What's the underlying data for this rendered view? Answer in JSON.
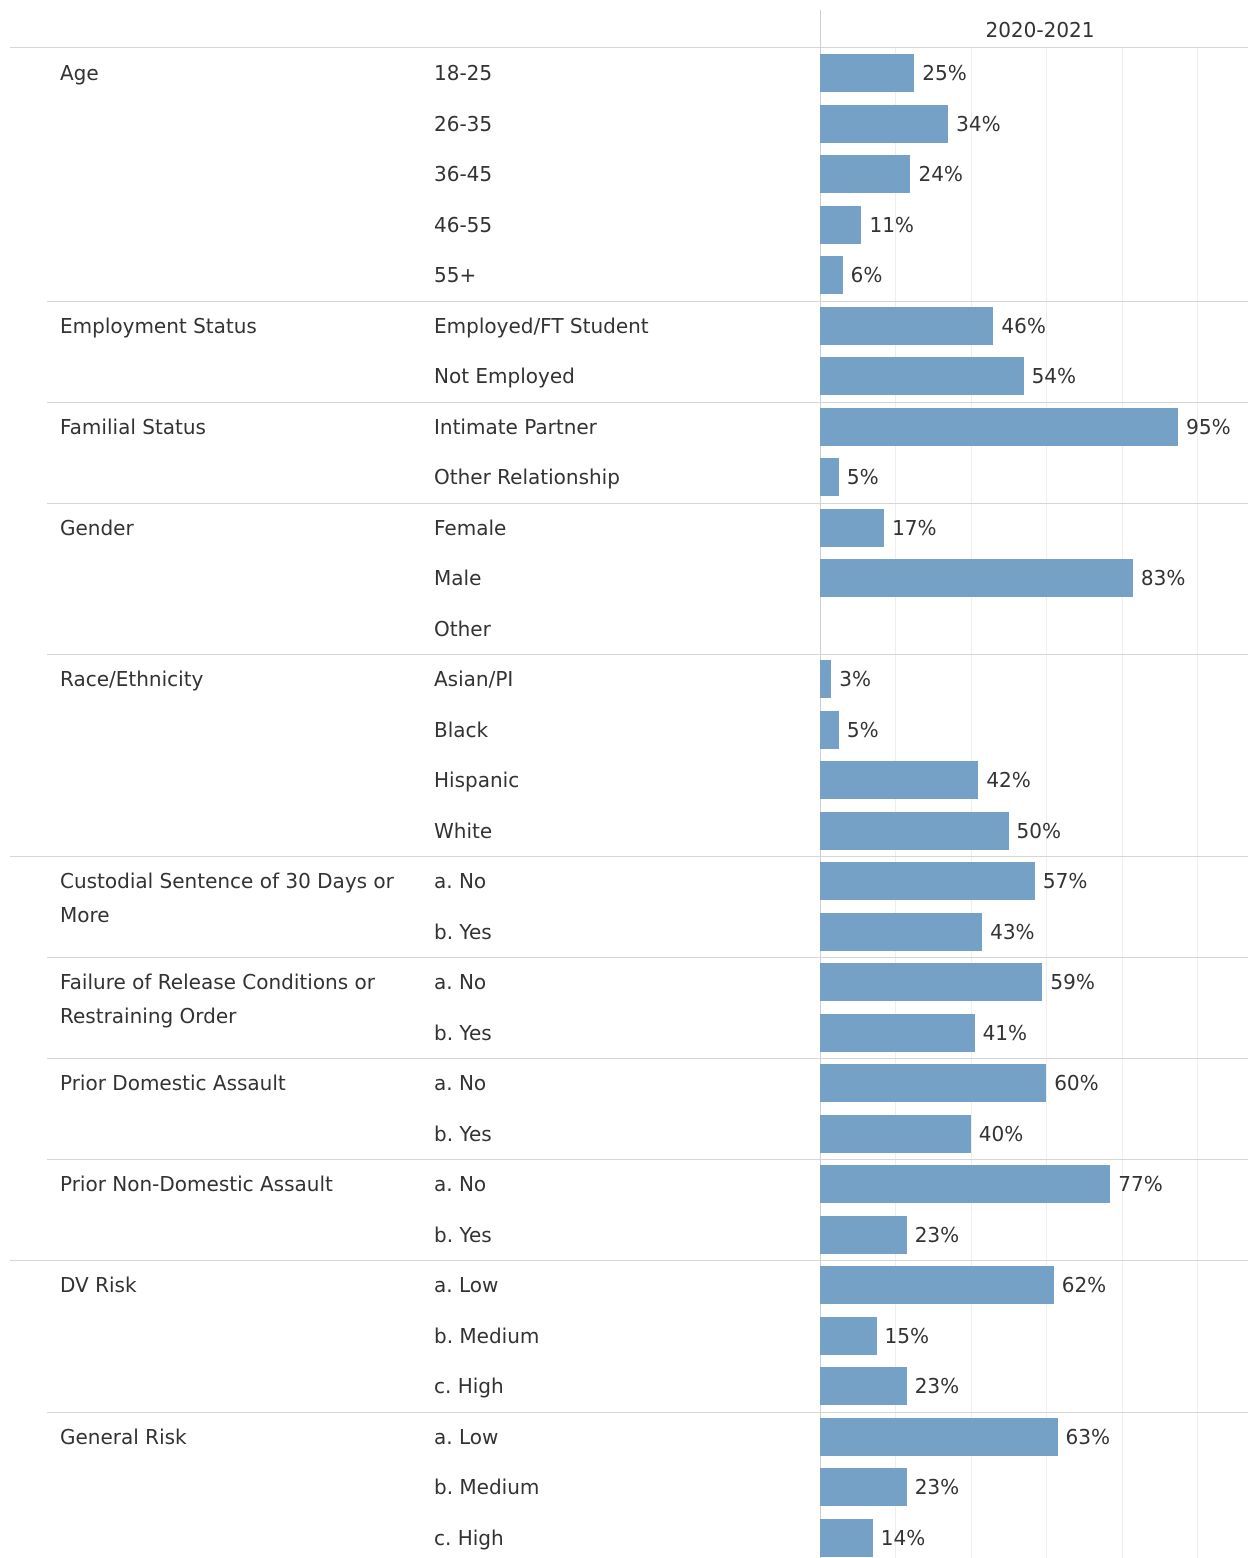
{
  "chart_data": {
    "type": "bar",
    "column_header": "2020-2021",
    "color": "#75a1c7",
    "xlim": [
      0,
      100
    ],
    "xticks": [
      0,
      20,
      40,
      60,
      80,
      100
    ],
    "grid": true,
    "groups": [
      {
        "name": "Age",
        "categories": [
          "18-25",
          "26-35",
          "36-45",
          "46-55",
          "55+"
        ],
        "values": [
          25,
          34,
          24,
          11,
          6
        ],
        "value_labels": [
          "25%",
          "34%",
          "24%",
          "11%",
          "6%"
        ]
      },
      {
        "name": "Employment Status",
        "categories": [
          "Employed/FT Student",
          "Not Employed"
        ],
        "values": [
          46,
          54
        ],
        "value_labels": [
          "46%",
          "54%"
        ]
      },
      {
        "name": "Familial Status",
        "categories": [
          "Intimate Partner",
          "Other Relationship"
        ],
        "values": [
          95,
          5
        ],
        "value_labels": [
          "95%",
          "5%"
        ]
      },
      {
        "name": "Gender",
        "categories": [
          "Female",
          "Male",
          "Other"
        ],
        "values": [
          17,
          83,
          null
        ],
        "value_labels": [
          "17%",
          "83%",
          null
        ]
      },
      {
        "name": "Race/Ethnicity",
        "categories": [
          "Asian/PI",
          "Black",
          "Hispanic",
          "White"
        ],
        "values": [
          3,
          5,
          42,
          50
        ],
        "value_labels": [
          "3%",
          "5%",
          "42%",
          "50%"
        ]
      },
      {
        "name": "Custodial Sentence of 30 Days or More",
        "categories": [
          "a. No",
          "b. Yes"
        ],
        "values": [
          57,
          43
        ],
        "value_labels": [
          "57%",
          "43%"
        ]
      },
      {
        "name": "Failure of Release Conditions or Restraining Order",
        "categories": [
          "a. No",
          "b. Yes"
        ],
        "values": [
          59,
          41
        ],
        "value_labels": [
          "59%",
          "41%"
        ]
      },
      {
        "name": "Prior Domestic Assault",
        "categories": [
          "a. No",
          "b. Yes"
        ],
        "values": [
          60,
          40
        ],
        "value_labels": [
          "60%",
          "40%"
        ]
      },
      {
        "name": "Prior Non-Domestic Assault",
        "categories": [
          "a. No",
          "b. Yes"
        ],
        "values": [
          77,
          23
        ],
        "value_labels": [
          "77%",
          "23%"
        ]
      },
      {
        "name": "DV Risk",
        "categories": [
          "a. Low",
          "b. Medium",
          "c. High"
        ],
        "values": [
          62,
          15,
          23
        ],
        "value_labels": [
          "62%",
          "15%",
          "23%"
        ]
      },
      {
        "name": "General Risk",
        "categories": [
          "a. Low",
          "b. Medium",
          "c. High"
        ],
        "values": [
          63,
          23,
          14
        ],
        "value_labels": [
          "63%",
          "23%",
          "14%"
        ]
      }
    ]
  }
}
